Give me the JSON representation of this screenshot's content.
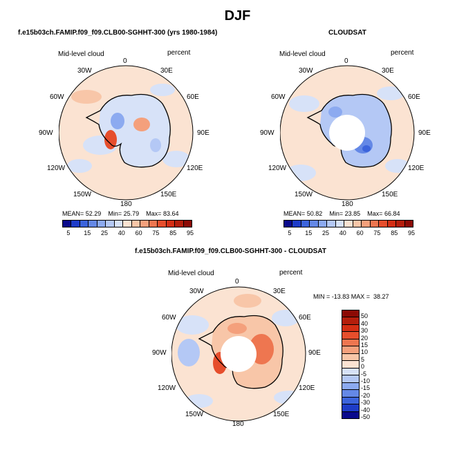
{
  "title": "DJF",
  "panels": {
    "model": {
      "title": "f.e15b03ch.FAMIP.f09_f09.CLB00-SGHHT-300 (yrs 1980-1984)",
      "var_label": "Mid-level cloud",
      "units": "percent",
      "mean_label": "MEAN=",
      "mean": "52.29",
      "min_label": "Min=",
      "min": "25.79",
      "max_label": "Max=",
      "max": "83.64"
    },
    "obs": {
      "title": "CLOUDSAT",
      "var_label": "Mid-level cloud",
      "units": "percent",
      "mean_label": "MEAN=",
      "mean": "50.82",
      "min_label": "Min=",
      "min": "23.85",
      "max_label": "Max=",
      "max": "66.84"
    },
    "diff": {
      "title": "f.e15b03ch.FAMIP.f09_f09.CLB00-SGHHT-300 - CLOUDSAT",
      "var_label": "Mid-level cloud",
      "units": "percent",
      "minmax_text": "MIN = -13.83 MAX =  38.27"
    }
  },
  "lon_labels": [
    "0",
    "30E",
    "60E",
    "90E",
    "120E",
    "150E",
    "180",
    "150W",
    "120W",
    "90W",
    "60W",
    "30W"
  ],
  "colorbar_abs": {
    "colors": [
      "#0a0a8c",
      "#1e3cc8",
      "#3c64dc",
      "#6488e6",
      "#8caaf0",
      "#b4c8f5",
      "#d7e2f8",
      "#fbe3d2",
      "#f8c6a8",
      "#f4a07c",
      "#ee7650",
      "#e64e2c",
      "#d42e14",
      "#b41e0c",
      "#8c0a05"
    ],
    "ticks": [
      "5",
      "15",
      "25",
      "40",
      "60",
      "75",
      "85",
      "95"
    ]
  },
  "colorbar_diff": {
    "colors": [
      "#8c0a05",
      "#b41e0c",
      "#d42e14",
      "#e64e2c",
      "#ee7650",
      "#f4a07c",
      "#f8c6a8",
      "#fbe3d2",
      "#d7e2f8",
      "#b4c8f5",
      "#8caaf0",
      "#6488e6",
      "#3c64dc",
      "#1e3cc8",
      "#0a0a8c"
    ],
    "ticks": [
      "50",
      "40",
      "30",
      "20",
      "15",
      "10",
      "5",
      "0",
      "-5",
      "-10",
      "-15",
      "-20",
      "-30",
      "-40",
      "-50"
    ]
  }
}
